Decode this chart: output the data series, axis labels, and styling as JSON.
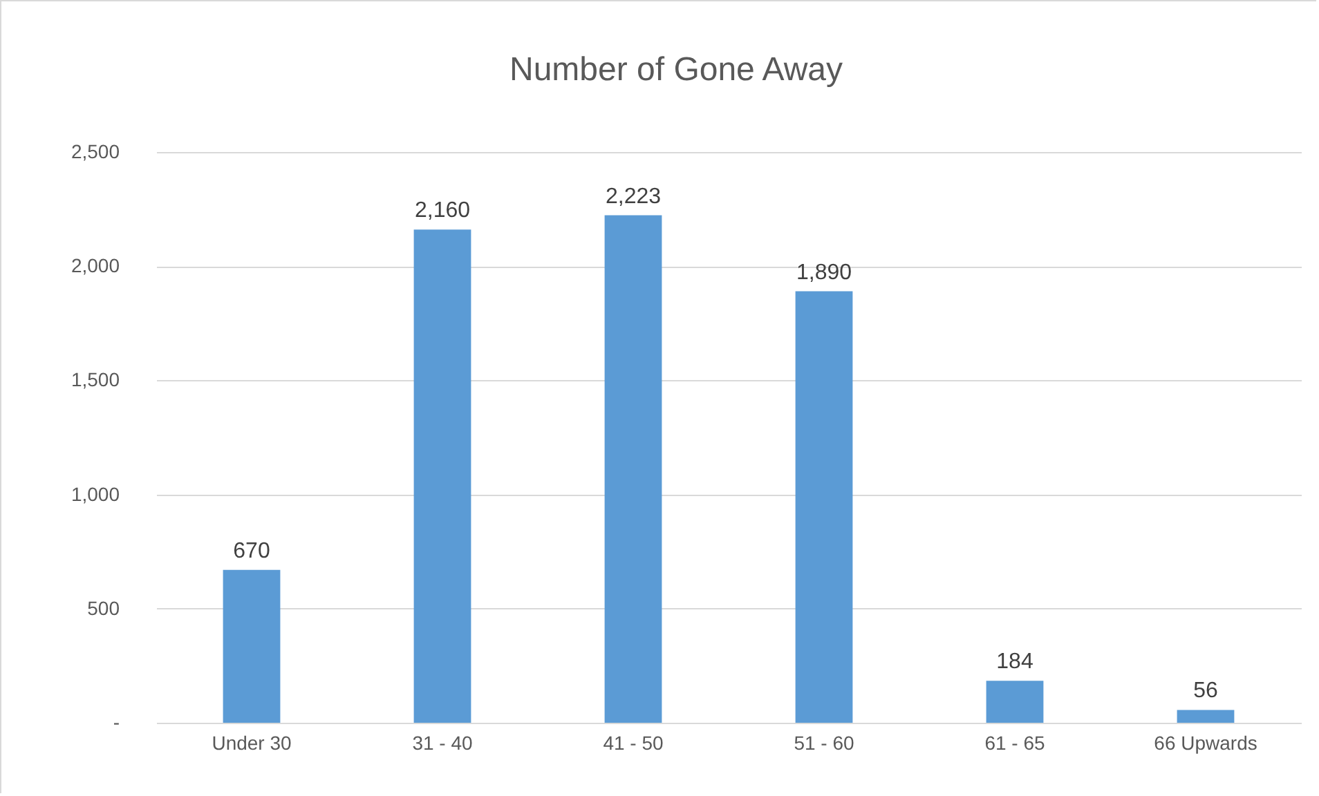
{
  "chart_data": {
    "type": "bar",
    "title": "Number of Gone Away",
    "categories": [
      "Under 30",
      "31 - 40",
      "41 - 50",
      "51 - 60",
      "61 - 65",
      "66 Upwards"
    ],
    "values": [
      670,
      2160,
      2223,
      1890,
      184,
      56
    ],
    "value_labels": [
      "670",
      "2,160",
      "2,223",
      "1,890",
      "184",
      "56"
    ],
    "color": "#5b9bd5",
    "ylim": [
      0,
      2500
    ],
    "yticks": [
      {
        "value": 0,
        "label": "-"
      },
      500,
      {
        "value": 1000,
        "label": "1,000"
      },
      {
        "value": 1500,
        "label": "1,500"
      },
      {
        "value": 2000,
        "label": "2,000"
      },
      {
        "value": 2500,
        "label": "2,500"
      }
    ],
    "grid": "y"
  }
}
